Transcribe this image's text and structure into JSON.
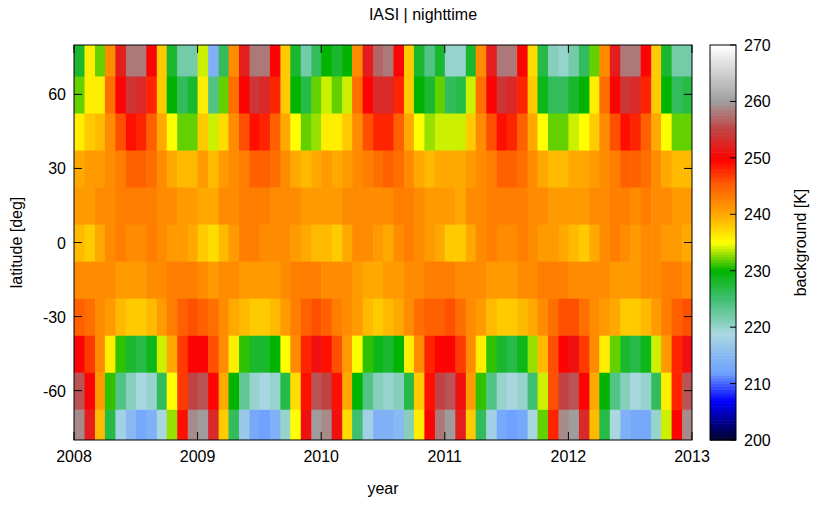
{
  "chart_data": {
    "type": "heatmap",
    "title": "IASI | nighttime",
    "xlabel": "year",
    "ylabel": "latitude [deg]",
    "zlabel": "background [K]",
    "xlim": [
      2008,
      2013
    ],
    "xticks": [
      2008,
      2009,
      2010,
      2011,
      2012,
      2013
    ],
    "ylim": [
      -80,
      80
    ],
    "yticks": [
      -60,
      -30,
      0,
      30,
      60
    ],
    "zlim": [
      200,
      270
    ],
    "zticks": [
      200,
      210,
      220,
      230,
      240,
      250,
      260,
      270
    ],
    "x": [
      2008.04,
      2008.13,
      2008.21,
      2008.29,
      2008.38,
      2008.46,
      2008.54,
      2008.63,
      2008.71,
      2008.79,
      2008.88,
      2008.96,
      2009.04,
      2009.13,
      2009.21,
      2009.29,
      2009.38,
      2009.46,
      2009.54,
      2009.63,
      2009.71,
      2009.79,
      2009.88,
      2009.96,
      2010.04,
      2010.13,
      2010.21,
      2010.29,
      2010.38,
      2010.46,
      2010.54,
      2010.63,
      2010.71,
      2010.79,
      2010.88,
      2010.96,
      2011.04,
      2011.13,
      2011.21,
      2011.29,
      2011.38,
      2011.46,
      2011.54,
      2011.63,
      2011.71,
      2011.79,
      2011.88,
      2011.96,
      2012.04,
      2012.13,
      2012.21,
      2012.29,
      2012.38,
      2012.46,
      2012.54,
      2012.63,
      2012.71,
      2012.79,
      2012.88,
      2012.96
    ],
    "y": [
      -75,
      -60,
      -45,
      -30,
      -15,
      0,
      15,
      30,
      45,
      60,
      75
    ],
    "z": [
      [
        259,
        252,
        239,
        227,
        218,
        215,
        213,
        214,
        219,
        233,
        249,
        259,
        260,
        253,
        238,
        226,
        217,
        213,
        212,
        214,
        220,
        235,
        251,
        260,
        259,
        251,
        237,
        225,
        218,
        214,
        214,
        215,
        221,
        236,
        250,
        258,
        260,
        252,
        238,
        226,
        218,
        213,
        212,
        213,
        219,
        232,
        248,
        259,
        260,
        253,
        239,
        227,
        219,
        214,
        213,
        213,
        220,
        234,
        250,
        259
      ],
      [
        256,
        250,
        241,
        231,
        224,
        221,
        219,
        220,
        226,
        235,
        247,
        255,
        256,
        250,
        240,
        230,
        223,
        220,
        219,
        220,
        227,
        237,
        249,
        256,
        255,
        249,
        240,
        230,
        224,
        221,
        220,
        221,
        227,
        238,
        249,
        255,
        256,
        251,
        241,
        231,
        224,
        220,
        219,
        220,
        225,
        234,
        246,
        255,
        256,
        250,
        240,
        230,
        224,
        221,
        219,
        220,
        226,
        236,
        248,
        256
      ],
      [
        250,
        247,
        242,
        236,
        231,
        228,
        227,
        229,
        234,
        240,
        247,
        250,
        250,
        246,
        242,
        236,
        231,
        228,
        228,
        230,
        235,
        242,
        248,
        251,
        249,
        246,
        241,
        235,
        231,
        229,
        228,
        230,
        236,
        242,
        248,
        250,
        250,
        247,
        242,
        236,
        231,
        228,
        227,
        229,
        233,
        239,
        246,
        250,
        251,
        247,
        242,
        236,
        232,
        228,
        227,
        229,
        234,
        241,
        248,
        251
      ],
      [
        245,
        244,
        242,
        241,
        239,
        238,
        238,
        239,
        241,
        243,
        245,
        246,
        245,
        244,
        242,
        240,
        239,
        238,
        238,
        239,
        241,
        243,
        245,
        246,
        245,
        243,
        242,
        241,
        239,
        238,
        239,
        240,
        242,
        244,
        245,
        245,
        246,
        244,
        242,
        241,
        239,
        238,
        238,
        239,
        240,
        242,
        244,
        246,
        246,
        244,
        242,
        241,
        240,
        238,
        238,
        239,
        241,
        243,
        245,
        246
      ],
      [
        242,
        242,
        242,
        242,
        241,
        241,
        241,
        242,
        242,
        243,
        243,
        243,
        242,
        241,
        242,
        242,
        241,
        241,
        241,
        241,
        242,
        243,
        243,
        243,
        242,
        242,
        242,
        241,
        240,
        240,
        241,
        241,
        242,
        242,
        243,
        243,
        243,
        242,
        242,
        242,
        241,
        241,
        241,
        242,
        242,
        243,
        243,
        243,
        242,
        242,
        242,
        242,
        241,
        241,
        241,
        242,
        242,
        243,
        243,
        242
      ],
      [
        239,
        238,
        240,
        242,
        243,
        242,
        242,
        243,
        242,
        241,
        241,
        240,
        238,
        237,
        239,
        241,
        243,
        243,
        242,
        242,
        242,
        241,
        240,
        239,
        239,
        238,
        240,
        242,
        242,
        241,
        240,
        242,
        243,
        242,
        241,
        240,
        238,
        238,
        240,
        242,
        243,
        242,
        242,
        243,
        242,
        241,
        241,
        240,
        239,
        238,
        240,
        242,
        243,
        242,
        241,
        242,
        242,
        241,
        241,
        240
      ],
      [
        241,
        241,
        242,
        242,
        243,
        243,
        243,
        243,
        242,
        242,
        241,
        241,
        240,
        240,
        242,
        242,
        243,
        243,
        243,
        242,
        242,
        242,
        241,
        241,
        241,
        241,
        242,
        242,
        242,
        242,
        242,
        243,
        243,
        242,
        241,
        241,
        241,
        240,
        242,
        242,
        243,
        243,
        243,
        243,
        242,
        242,
        241,
        241,
        241,
        241,
        242,
        242,
        243,
        243,
        242,
        243,
        242,
        242,
        241,
        241
      ],
      [
        240,
        241,
        241,
        242,
        243,
        245,
        245,
        244,
        242,
        240,
        239,
        239,
        241,
        239,
        241,
        242,
        243,
        245,
        245,
        244,
        242,
        240,
        239,
        240,
        241,
        240,
        241,
        242,
        243,
        244,
        245,
        244,
        242,
        240,
        239,
        240,
        240,
        240,
        241,
        242,
        243,
        245,
        245,
        244,
        242,
        240,
        239,
        239,
        240,
        240,
        241,
        242,
        243,
        245,
        245,
        244,
        242,
        240,
        239,
        239
      ],
      [
        236,
        238,
        239,
        242,
        246,
        249,
        248,
        245,
        240,
        235,
        232,
        232,
        238,
        234,
        237,
        242,
        246,
        249,
        248,
        245,
        240,
        235,
        232,
        233,
        236,
        236,
        238,
        242,
        246,
        248,
        248,
        245,
        240,
        235,
        233,
        234,
        234,
        234,
        238,
        242,
        246,
        249,
        248,
        245,
        240,
        235,
        232,
        232,
        234,
        235,
        238,
        242,
        246,
        249,
        248,
        245,
        240,
        235,
        232,
        232
      ],
      [
        232,
        236,
        236,
        244,
        250,
        254,
        253,
        248,
        238,
        230,
        226,
        228,
        236,
        224,
        232,
        244,
        250,
        254,
        253,
        248,
        238,
        230,
        227,
        232,
        234,
        232,
        234,
        244,
        250,
        253,
        253,
        248,
        238,
        230,
        228,
        232,
        226,
        227,
        234,
        244,
        250,
        254,
        253,
        248,
        238,
        229,
        226,
        226,
        228,
        230,
        236,
        244,
        250,
        254,
        253,
        248,
        238,
        230,
        226,
        227
      ],
      [
        228,
        236,
        232,
        242,
        252,
        258,
        258,
        250,
        238,
        228,
        222,
        222,
        234,
        214,
        226,
        242,
        252,
        258,
        258,
        250,
        238,
        228,
        222,
        226,
        230,
        228,
        230,
        242,
        252,
        257,
        258,
        250,
        238,
        228,
        224,
        228,
        220,
        220,
        228,
        242,
        252,
        258,
        258,
        250,
        237,
        227,
        221,
        220,
        222,
        226,
        232,
        242,
        252,
        258,
        258,
        250,
        238,
        228,
        222,
        222
      ]
    ]
  }
}
